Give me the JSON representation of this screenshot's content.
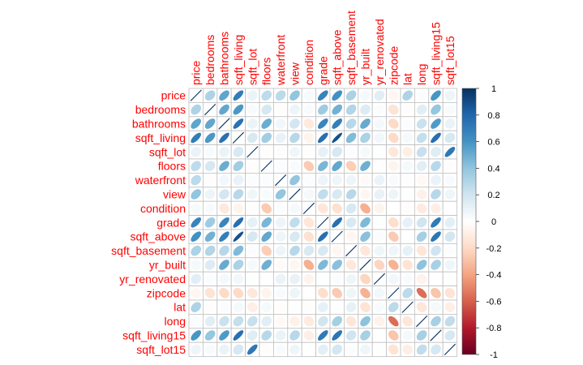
{
  "chart_data": {
    "type": "heatmap",
    "subtype": "correlation-ellipse",
    "variables": [
      "price",
      "bedrooms",
      "bathrooms",
      "sqft_living",
      "sqft_lot",
      "floors",
      "waterfront",
      "view",
      "condition",
      "grade",
      "sqft_above",
      "sqft_basement",
      "yr_built",
      "yr_renovated",
      "zipcode",
      "lat",
      "long",
      "sqft_living15",
      "sqft_lot15"
    ],
    "matrix": [
      [
        1.0,
        0.31,
        0.53,
        0.7,
        0.09,
        0.26,
        0.27,
        0.4,
        0.04,
        0.67,
        0.61,
        0.32,
        0.05,
        0.13,
        -0.05,
        0.31,
        0.02,
        0.59,
        0.08
      ],
      [
        0.31,
        1.0,
        0.52,
        0.58,
        0.03,
        0.18,
        -0.01,
        0.08,
        0.03,
        0.36,
        0.48,
        0.3,
        0.15,
        0.02,
        -0.15,
        -0.01,
        0.13,
        0.39,
        0.03
      ],
      [
        0.53,
        0.52,
        1.0,
        0.75,
        0.09,
        0.5,
        0.06,
        0.19,
        -0.12,
        0.66,
        0.69,
        0.28,
        0.51,
        0.05,
        -0.2,
        0.02,
        0.22,
        0.57,
        0.09
      ],
      [
        0.7,
        0.58,
        0.75,
        1.0,
        0.17,
        0.35,
        0.1,
        0.28,
        -0.06,
        0.76,
        0.88,
        0.44,
        0.32,
        0.06,
        -0.2,
        0.05,
        0.24,
        0.76,
        0.18
      ],
      [
        0.09,
        0.03,
        0.09,
        0.17,
        1.0,
        -0.01,
        0.02,
        0.07,
        -0.01,
        0.11,
        0.18,
        0.02,
        0.05,
        0.01,
        -0.13,
        -0.09,
        0.23,
        0.14,
        0.72
      ],
      [
        0.26,
        0.18,
        0.5,
        0.35,
        -0.01,
        1.0,
        0.02,
        0.03,
        -0.26,
        0.46,
        0.52,
        -0.25,
        0.49,
        0.01,
        -0.06,
        0.05,
        0.13,
        0.28,
        -0.01
      ],
      [
        0.27,
        -0.01,
        0.06,
        0.1,
        0.02,
        0.02,
        1.0,
        0.4,
        0.02,
        0.08,
        0.07,
        0.08,
        -0.03,
        0.09,
        0.03,
        -0.01,
        -0.04,
        0.09,
        0.03
      ],
      [
        0.4,
        0.08,
        0.19,
        0.28,
        0.07,
        0.03,
        0.4,
        1.0,
        0.05,
        0.25,
        0.17,
        0.28,
        -0.05,
        0.1,
        0.08,
        0.01,
        -0.08,
        0.28,
        0.07
      ],
      [
        0.04,
        0.03,
        -0.12,
        -0.06,
        -0.01,
        -0.26,
        0.02,
        0.05,
        1.0,
        -0.14,
        -0.16,
        0.17,
        -0.36,
        -0.06,
        0.0,
        -0.01,
        -0.11,
        -0.09,
        -0.0
      ],
      [
        0.67,
        0.36,
        0.66,
        0.76,
        0.11,
        0.46,
        0.08,
        0.25,
        -0.14,
        1.0,
        0.76,
        0.17,
        0.45,
        0.01,
        -0.18,
        0.11,
        0.2,
        0.71,
        0.12
      ],
      [
        0.61,
        0.48,
        0.69,
        0.88,
        0.18,
        0.52,
        0.07,
        0.17,
        -0.16,
        0.76,
        1.0,
        -0.05,
        0.42,
        0.02,
        -0.26,
        -0.0,
        0.34,
        0.73,
        0.19
      ],
      [
        0.32,
        0.3,
        0.28,
        0.44,
        0.02,
        -0.25,
        0.08,
        0.28,
        0.17,
        0.17,
        -0.05,
        1.0,
        -0.13,
        0.07,
        0.07,
        0.11,
        -0.14,
        0.2,
        0.02
      ],
      [
        0.05,
        0.15,
        0.51,
        0.32,
        0.05,
        0.49,
        -0.03,
        -0.05,
        -0.36,
        0.45,
        0.42,
        -0.13,
        1.0,
        -0.22,
        -0.35,
        -0.15,
        0.41,
        0.33,
        0.07
      ],
      [
        0.13,
        0.02,
        0.05,
        0.06,
        0.01,
        0.01,
        0.09,
        0.1,
        -0.06,
        0.01,
        0.02,
        0.07,
        -0.22,
        1.0,
        0.06,
        0.03,
        -0.07,
        -0.0,
        0.01
      ],
      [
        -0.05,
        -0.15,
        -0.2,
        -0.2,
        -0.13,
        -0.06,
        0.03,
        0.08,
        0.0,
        -0.18,
        -0.26,
        0.07,
        -0.35,
        0.06,
        1.0,
        0.27,
        -0.56,
        -0.28,
        -0.15
      ],
      [
        0.31,
        -0.01,
        0.02,
        0.05,
        -0.09,
        0.05,
        -0.01,
        0.01,
        -0.01,
        0.11,
        -0.0,
        0.11,
        -0.15,
        0.03,
        0.27,
        1.0,
        -0.14,
        0.05,
        -0.09
      ],
      [
        0.02,
        0.13,
        0.22,
        0.24,
        0.23,
        0.13,
        -0.04,
        -0.08,
        -0.11,
        0.2,
        0.34,
        -0.14,
        0.41,
        -0.07,
        -0.56,
        -0.14,
        1.0,
        0.33,
        0.25
      ],
      [
        0.59,
        0.39,
        0.57,
        0.76,
        0.14,
        0.28,
        0.09,
        0.28,
        -0.09,
        0.71,
        0.73,
        0.2,
        0.33,
        -0.0,
        -0.28,
        0.05,
        0.33,
        1.0,
        0.18
      ],
      [
        0.08,
        0.03,
        0.09,
        0.18,
        0.72,
        -0.01,
        0.03,
        0.07,
        -0.0,
        0.12,
        0.19,
        0.02,
        0.07,
        0.01,
        -0.15,
        -0.09,
        0.25,
        0.18,
        1.0
      ]
    ],
    "colorbar": {
      "ticks": [
        "1",
        "0.8",
        "0.6",
        "0.4",
        "0.2",
        "0",
        "-0.2",
        "-0.4",
        "-0.6",
        "-0.8",
        "-1"
      ],
      "range": [
        -1,
        1
      ]
    },
    "colors": {
      "label": "#ff0000",
      "grid": "#bfbfbf",
      "stops": [
        "#67001f",
        "#b2182b",
        "#d6604d",
        "#f4a582",
        "#fddbc7",
        "#ffffff",
        "#d1e5f0",
        "#92c5de",
        "#4393c3",
        "#2166ac",
        "#053061"
      ]
    }
  }
}
